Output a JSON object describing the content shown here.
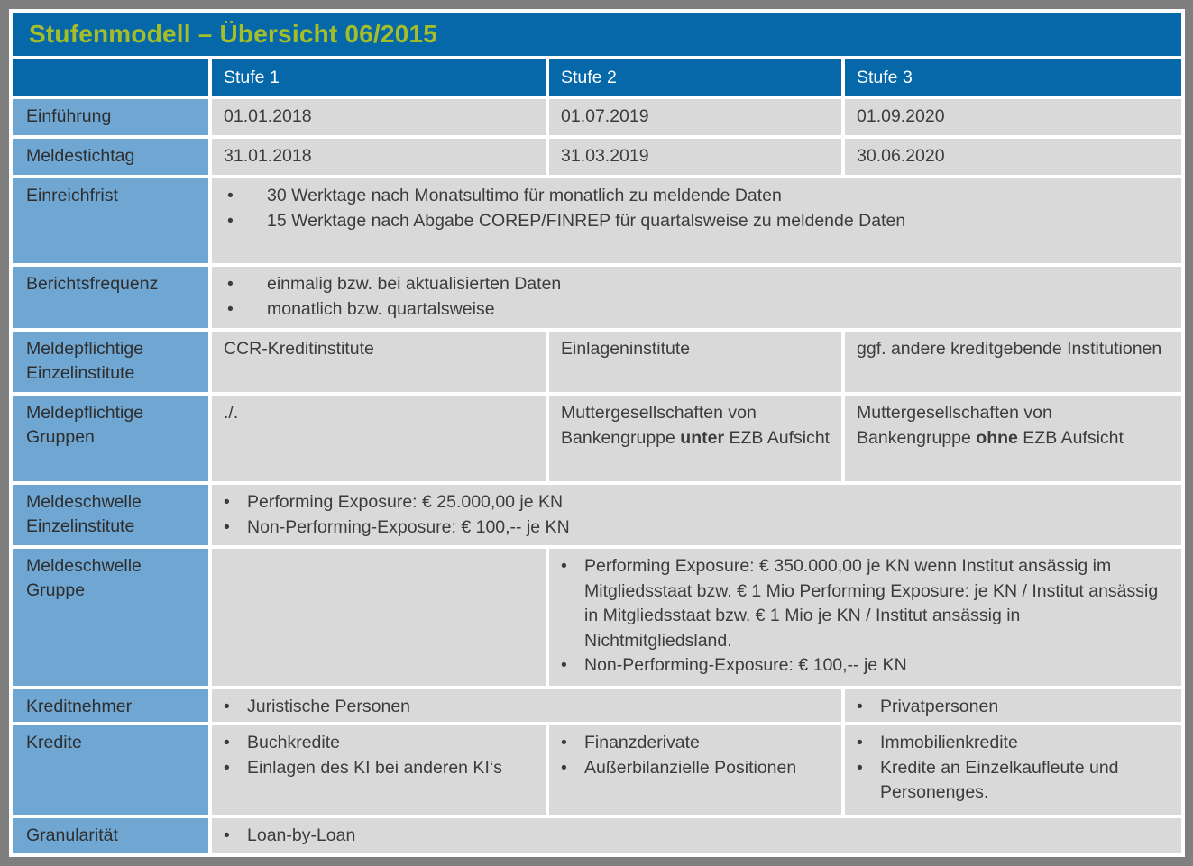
{
  "ui": {
    "bullet": "•"
  },
  "colors": {
    "header_blue": "#0768A9",
    "label_blue": "#6FA6D2",
    "cell_gray": "#D9D9D9",
    "title_green": "#A3BE28",
    "frame_gray": "#7F7F7F",
    "gridline_white": "#FFFFFF"
  },
  "title": "Stufenmodell – Übersicht 06/2015",
  "header": {
    "stufe1": "Stufe 1",
    "stufe2": "Stufe 2",
    "stufe3": "Stufe 3"
  },
  "rows": {
    "einfuehrung": {
      "label": "Einführung",
      "stufe1": "01.01.2018",
      "stufe2": "01.07.2019",
      "stufe3": "01.09.2020"
    },
    "meldestichtag": {
      "label": "Meldestichtag",
      "stufe1": "31.01.2018",
      "stufe2": "31.03.2019",
      "stufe3": "30.06.2020"
    },
    "einreichfrist": {
      "label": "Einreichfrist",
      "bullets": [
        "30 Werktage nach Monatsultimo für monatlich zu meldende Daten",
        "15 Werktage nach Abgabe COREP/FINREP für quartalsweise zu meldende Daten"
      ]
    },
    "berichtsfrequenz": {
      "label": "Berichtsfrequenz",
      "bullets": [
        "einmalig bzw. bei aktualisierten Daten",
        "monatlich bzw. quartalsweise"
      ]
    },
    "meldepflichtige_einzelinstitute": {
      "label": "Meldepflichtige Einzelinstitute",
      "stufe1": "CCR-Kreditinstitute",
      "stufe2": "Einlageninstitute",
      "stufe3": "ggf. andere kreditgebende Institutionen"
    },
    "meldepflichtige_gruppen": {
      "label": "Meldepflichtige Gruppen",
      "stufe1": "./.",
      "stufe2": {
        "pre": "Muttergesellschaften von Bankengruppe ",
        "bold": "unter",
        "post": " EZB Aufsicht"
      },
      "stufe3": {
        "pre": "Muttergesellschaften von Bankengruppe ",
        "bold": "ohne",
        "post": " EZB Aufsicht"
      }
    },
    "meldeschwelle_einzelinstitute": {
      "label": "Meldeschwelle Einzelinstitute",
      "bullets": [
        "Performing Exposure: € 25.000,00 je KN",
        "Non-Performing-Exposure: € 100,-- je KN"
      ]
    },
    "meldeschwelle_gruppe": {
      "label": "Meldeschwelle Gruppe",
      "stufe1": "",
      "bullets_stufe23": [
        "Performing Exposure: € 350.000,00 je KN wenn Institut ansässig im Mitgliedsstaat bzw. € 1 Mio  Performing Exposure: je KN / Institut ansässig in Mitgliedsstaat bzw. € 1 Mio je KN / Institut ansässig in Nichtmitgliedsland.",
        "Non-Performing-Exposure: € 100,-- je KN"
      ]
    },
    "kreditnehmer": {
      "label": "Kreditnehmer",
      "stufe12": "Juristische Personen",
      "stufe3": "Privatpersonen"
    },
    "kredite": {
      "label": "Kredite",
      "stufe1": [
        "Buchkredite",
        "Einlagen des KI bei anderen KI‘s"
      ],
      "stufe2": [
        "Finanzderivate",
        "Außerbilanzielle Positionen"
      ],
      "stufe3": [
        "Immobilienkredite",
        "Kredite an Einzelkaufleute und Personenges."
      ]
    },
    "granularitaet": {
      "label": "Granularität",
      "stufe123": "Loan-by-Loan"
    }
  }
}
